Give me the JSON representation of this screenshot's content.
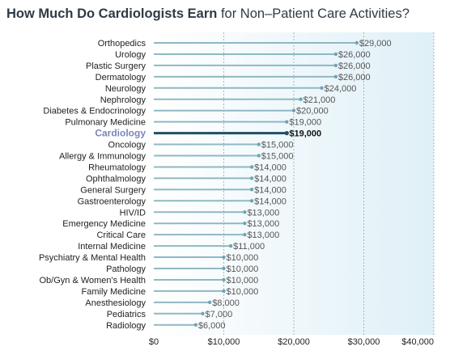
{
  "title": {
    "bold_part": "How Much Do Cardiologists Earn",
    "rest_part": " for Non–Patient Care Activities?"
  },
  "colors": {
    "bar": "#8fb8c3",
    "highlight_bar": "#1f4f64",
    "dot": "#6ea4b3",
    "highlight_label": "#7b86b8",
    "panel_left": "#ffffff",
    "panel_right": "#dff0f7"
  },
  "chart_data": {
    "type": "bar",
    "orientation": "horizontal",
    "title": "How Much Do Cardiologists Earn for Non–Patient Care Activities?",
    "categories": [
      "Orthopedics",
      "Urology",
      "Plastic Surgery",
      "Dermatology",
      "Neurology",
      "Nephrology",
      "Diabetes & Endocrinology",
      "Pulmonary Medicine",
      "Cardiology",
      "Oncology",
      "Allergy & Immunology",
      "Rheumatology",
      "Ophthalmology",
      "General Surgery",
      "Gastroenterology",
      "HIV/ID",
      "Emergency Medicine",
      "Critical Care",
      "Internal Medicine",
      "Psychiatry & Mental Health",
      "Pathology",
      "Ob/Gyn & Women's Health",
      "Family Medicine",
      "Anesthesiology",
      "Pediatrics",
      "Radiology"
    ],
    "values": [
      29000,
      26000,
      26000,
      26000,
      24000,
      21000,
      20000,
      19000,
      19000,
      15000,
      15000,
      14000,
      14000,
      14000,
      14000,
      13000,
      13000,
      13000,
      11000,
      10000,
      10000,
      10000,
      10000,
      8000,
      7000,
      6000
    ],
    "value_labels": [
      "$29,000",
      "$26,000",
      "$26,000",
      "$26,000",
      "$24,000",
      "$21,000",
      "$20,000",
      "$19,000",
      "$19,000",
      "$15,000",
      "$15,000",
      "$14,000",
      "$14,000",
      "$14,000",
      "$14,000",
      "$13,000",
      "$13,000",
      "$13,000",
      "$11,000",
      "$10,000",
      "$10,000",
      "$10,000",
      "$10,000",
      "$8,000",
      "$7,000",
      "$6,000"
    ],
    "highlight": "Cardiology",
    "xlim": [
      0,
      40000
    ],
    "xticks": [
      0,
      10000,
      20000,
      30000,
      40000
    ],
    "xtick_labels": [
      "$0",
      "$10,000",
      "$20,000",
      "$30,000",
      "$40,000"
    ],
    "grid": "dotted vertical lines at tick positions",
    "xlabel": "",
    "ylabel": ""
  }
}
